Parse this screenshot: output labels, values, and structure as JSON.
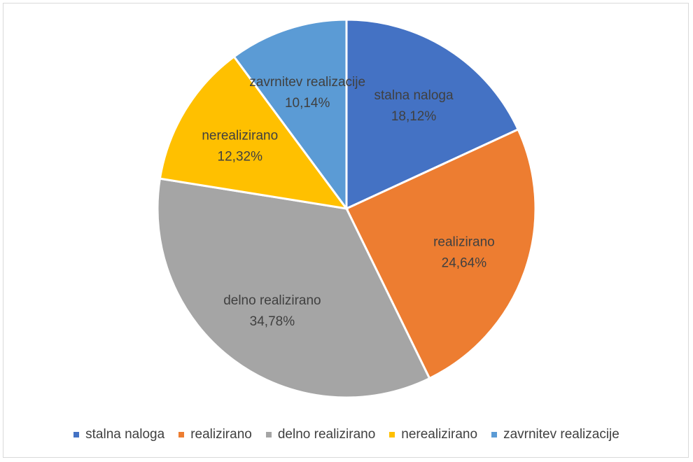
{
  "chart_data": {
    "type": "pie",
    "title": "",
    "legend_position": "bottom",
    "slices": [
      {
        "label": "stalna naloga",
        "value": 18.12,
        "value_label": "18,12%",
        "color": "#4472C4"
      },
      {
        "label": "realizirano",
        "value": 24.64,
        "value_label": "24,64%",
        "color": "#ED7D31"
      },
      {
        "label": "delno realizirano",
        "value": 34.78,
        "value_label": "34,78%",
        "color": "#A5A5A5"
      },
      {
        "label": "nerealizirano",
        "value": 12.32,
        "value_label": "12,32%",
        "color": "#FFC000"
      },
      {
        "label": "zavrnitev realizacije",
        "value": 10.14,
        "value_label": "10,14%",
        "color": "#5B9BD5"
      }
    ]
  }
}
